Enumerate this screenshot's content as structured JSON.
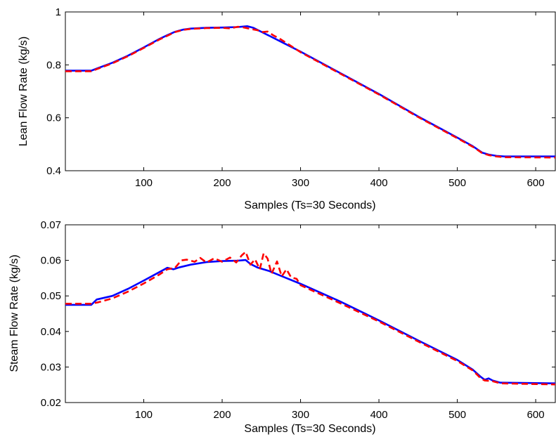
{
  "chart_data": [
    {
      "type": "line",
      "title": "",
      "xlabel": "Samples (Ts=30 Seconds)",
      "ylabel": "Lean Flow Rate (kg/s)",
      "xlim": [
        0,
        625
      ],
      "ylim": [
        0.4,
        1.0
      ],
      "xticks": [
        100,
        200,
        300,
        400,
        500,
        600
      ],
      "yticks": [
        0.4,
        0.6,
        0.8,
        1.0
      ],
      "xtick_labels": [
        "100",
        "200",
        "300",
        "400",
        "500",
        "600"
      ],
      "ytick_labels": [
        "0.4",
        "0.6",
        "0.8",
        "1"
      ],
      "grid": false,
      "series": [
        {
          "color": "#0000ff",
          "style": "solid",
          "points": [
            [
              0,
              0.778
            ],
            [
              33,
              0.778
            ],
            [
              40,
              0.786
            ],
            [
              60,
              0.808
            ],
            [
              80,
              0.835
            ],
            [
              100,
              0.866
            ],
            [
              120,
              0.898
            ],
            [
              130,
              0.912
            ],
            [
              140,
              0.925
            ],
            [
              150,
              0.933
            ],
            [
              160,
              0.937
            ],
            [
              180,
              0.94
            ],
            [
              200,
              0.941
            ],
            [
              220,
              0.943
            ],
            [
              232,
              0.946
            ],
            [
              240,
              0.94
            ],
            [
              260,
              0.91
            ],
            [
              280,
              0.88
            ],
            [
              300,
              0.85
            ],
            [
              350,
              0.77
            ],
            [
              400,
              0.69
            ],
            [
              450,
              0.605
            ],
            [
              500,
              0.525
            ],
            [
              520,
              0.492
            ],
            [
              532,
              0.468
            ],
            [
              540,
              0.461
            ],
            [
              550,
              0.456
            ],
            [
              560,
              0.454
            ],
            [
              625,
              0.454
            ]
          ]
        },
        {
          "color": "#ff0000",
          "style": "dashed",
          "points": [
            [
              0,
              0.776
            ],
            [
              33,
              0.776
            ],
            [
              40,
              0.784
            ],
            [
              60,
              0.806
            ],
            [
              80,
              0.833
            ],
            [
              100,
              0.864
            ],
            [
              120,
              0.896
            ],
            [
              130,
              0.91
            ],
            [
              140,
              0.924
            ],
            [
              150,
              0.932
            ],
            [
              160,
              0.936
            ],
            [
              180,
              0.939
            ],
            [
              200,
              0.94
            ],
            [
              210,
              0.938
            ],
            [
              220,
              0.944
            ],
            [
              228,
              0.941
            ],
            [
              236,
              0.936
            ],
            [
              245,
              0.931
            ],
            [
              252,
              0.924
            ],
            [
              258,
              0.926
            ],
            [
              265,
              0.912
            ],
            [
              275,
              0.896
            ],
            [
              285,
              0.877
            ],
            [
              300,
              0.848
            ],
            [
              350,
              0.768
            ],
            [
              400,
              0.688
            ],
            [
              450,
              0.603
            ],
            [
              500,
              0.523
            ],
            [
              520,
              0.49
            ],
            [
              532,
              0.466
            ],
            [
              540,
              0.459
            ],
            [
              550,
              0.454
            ],
            [
              560,
              0.451
            ],
            [
              625,
              0.45
            ]
          ]
        }
      ]
    },
    {
      "type": "line",
      "title": "",
      "xlabel": "Samples (Ts=30 Seconds)",
      "ylabel": "Steam Flow Rate (kg/s)",
      "xlim": [
        0,
        625
      ],
      "ylim": [
        0.02,
        0.07
      ],
      "xticks": [
        100,
        200,
        300,
        400,
        500,
        600
      ],
      "yticks": [
        0.02,
        0.03,
        0.04,
        0.05,
        0.06,
        0.07
      ],
      "xtick_labels": [
        "100",
        "200",
        "300",
        "400",
        "500",
        "600"
      ],
      "ytick_labels": [
        "0.02",
        "0.03",
        "0.04",
        "0.05",
        "0.06",
        "0.07"
      ],
      "grid": false,
      "series": [
        {
          "color": "#0000ff",
          "style": "solid",
          "points": [
            [
              0,
              0.0475
            ],
            [
              33,
              0.0475
            ],
            [
              40,
              0.049
            ],
            [
              60,
              0.05
            ],
            [
              80,
              0.052
            ],
            [
              100,
              0.0543
            ],
            [
              120,
              0.0567
            ],
            [
              130,
              0.0579
            ],
            [
              138,
              0.0575
            ],
            [
              145,
              0.058
            ],
            [
              160,
              0.0588
            ],
            [
              180,
              0.0595
            ],
            [
              200,
              0.0598
            ],
            [
              220,
              0.0599
            ],
            [
              230,
              0.0601
            ],
            [
              236,
              0.059
            ],
            [
              245,
              0.058
            ],
            [
              260,
              0.057
            ],
            [
              280,
              0.0552
            ],
            [
              300,
              0.0534
            ],
            [
              350,
              0.0485
            ],
            [
              400,
              0.0431
            ],
            [
              450,
              0.0375
            ],
            [
              500,
              0.032
            ],
            [
              520,
              0.0292
            ],
            [
              530,
              0.0272
            ],
            [
              535,
              0.0264
            ],
            [
              540,
              0.0268
            ],
            [
              545,
              0.0262
            ],
            [
              555,
              0.0256
            ],
            [
              625,
              0.0254
            ]
          ]
        },
        {
          "color": "#ff0000",
          "style": "dashed",
          "points": [
            [
              0,
              0.0478
            ],
            [
              33,
              0.0478
            ],
            [
              42,
              0.0482
            ],
            [
              60,
              0.0493
            ],
            [
              80,
              0.0512
            ],
            [
              100,
              0.0535
            ],
            [
              120,
              0.056
            ],
            [
              130,
              0.0575
            ],
            [
              140,
              0.0579
            ],
            [
              148,
              0.06
            ],
            [
              155,
              0.0602
            ],
            [
              165,
              0.0596
            ],
            [
              172,
              0.0607
            ],
            [
              180,
              0.0594
            ],
            [
              190,
              0.0606
            ],
            [
              200,
              0.0596
            ],
            [
              210,
              0.0608
            ],
            [
              218,
              0.0594
            ],
            [
              225,
              0.0614
            ],
            [
              230,
              0.0624
            ],
            [
              236,
              0.0588
            ],
            [
              242,
              0.0603
            ],
            [
              248,
              0.0575
            ],
            [
              253,
              0.062
            ],
            [
              258,
              0.0605
            ],
            [
              263,
              0.0562
            ],
            [
              270,
              0.0597
            ],
            [
              276,
              0.0555
            ],
            [
              282,
              0.0575
            ],
            [
              288,
              0.0552
            ],
            [
              295,
              0.0548
            ],
            [
              300,
              0.053
            ],
            [
              350,
              0.048
            ],
            [
              400,
              0.0428
            ],
            [
              450,
              0.0372
            ],
            [
              500,
              0.0317
            ],
            [
              520,
              0.029
            ],
            [
              530,
              0.0268
            ],
            [
              535,
              0.0262
            ],
            [
              545,
              0.026
            ],
            [
              555,
              0.0254
            ],
            [
              625,
              0.0251
            ]
          ]
        }
      ]
    }
  ]
}
